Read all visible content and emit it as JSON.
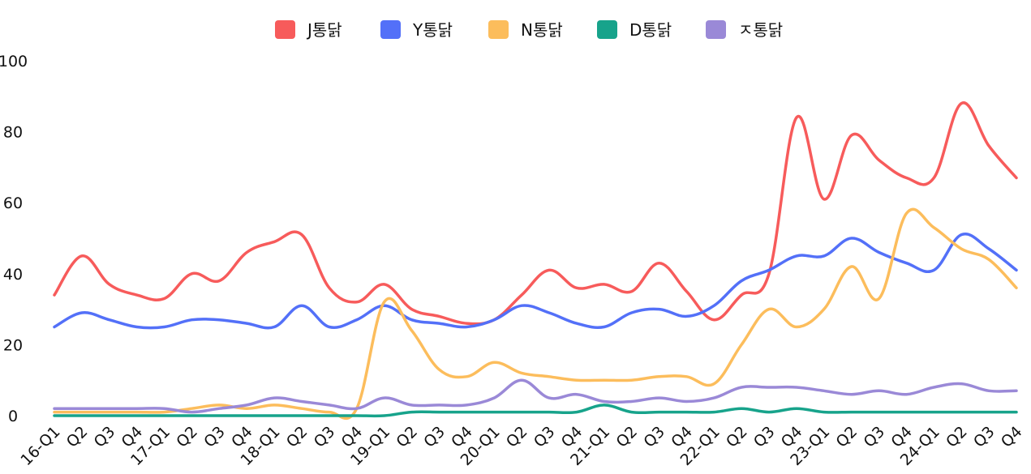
{
  "chart_data": {
    "type": "line",
    "title": "",
    "xlabel": "",
    "ylabel": "",
    "ylim": [
      0,
      100
    ],
    "yticks": [
      0,
      20,
      40,
      60,
      80,
      100
    ],
    "grid": false,
    "legend_position": "top-center",
    "categories": [
      "16-Q1",
      "Q2",
      "Q3",
      "Q4",
      "17-Q1",
      "Q2",
      "Q3",
      "Q4",
      "18-Q1",
      "Q2",
      "Q3",
      "Q4",
      "19-Q1",
      "Q2",
      "Q3",
      "Q4",
      "20-Q1",
      "Q2",
      "Q3",
      "Q4",
      "21-Q1",
      "Q2",
      "Q3",
      "Q4",
      "22-Q1",
      "Q2",
      "Q3",
      "Q4",
      "23-Q1",
      "Q2",
      "Q3",
      "Q4",
      "24-Q1",
      "Q2",
      "Q3",
      "Q4"
    ],
    "series": [
      {
        "name": "J통닭",
        "color": "#f75b5b",
        "values": [
          34,
          45,
          37,
          34,
          33,
          40,
          38,
          46,
          49,
          51,
          36,
          32,
          37,
          30,
          28,
          26,
          27,
          34,
          41,
          36,
          37,
          35,
          43,
          35,
          27,
          34,
          40,
          84,
          61,
          79,
          72,
          67,
          67,
          88,
          76,
          67
        ]
      },
      {
        "name": "Y통닭",
        "color": "#5370f8",
        "values": [
          25,
          29,
          27,
          25,
          25,
          27,
          27,
          26,
          25,
          31,
          25,
          27,
          31,
          27,
          26,
          25,
          27,
          31,
          29,
          26,
          25,
          29,
          30,
          28,
          31,
          38,
          41,
          45,
          45,
          50,
          46,
          43,
          41,
          51,
          47,
          41
        ]
      },
      {
        "name": "N통닭",
        "color": "#fcbd5c",
        "values": [
          1,
          1,
          1,
          1,
          1,
          2,
          3,
          2,
          3,
          2,
          1,
          2,
          32,
          24,
          13,
          11,
          15,
          12,
          11,
          10,
          10,
          10,
          11,
          11,
          9,
          20,
          30,
          25,
          30,
          42,
          33,
          57,
          53,
          47,
          44,
          36
        ]
      },
      {
        "name": "D통닭",
        "color": "#17a38b",
        "values": [
          0,
          0,
          0,
          0,
          0,
          0,
          0,
          0,
          0,
          0,
          0,
          0,
          0,
          1,
          1,
          1,
          1,
          1,
          1,
          1,
          3,
          1,
          1,
          1,
          1,
          2,
          1,
          2,
          1,
          1,
          1,
          1,
          1,
          1,
          1,
          1
        ]
      },
      {
        "name": "ㅈ통닭",
        "color": "#9a89d7",
        "values": [
          2,
          2,
          2,
          2,
          2,
          1,
          2,
          3,
          5,
          4,
          3,
          2,
          5,
          3,
          3,
          3,
          5,
          10,
          5,
          6,
          4,
          4,
          5,
          4,
          5,
          8,
          8,
          8,
          7,
          6,
          7,
          6,
          8,
          9,
          7,
          7
        ]
      }
    ]
  }
}
